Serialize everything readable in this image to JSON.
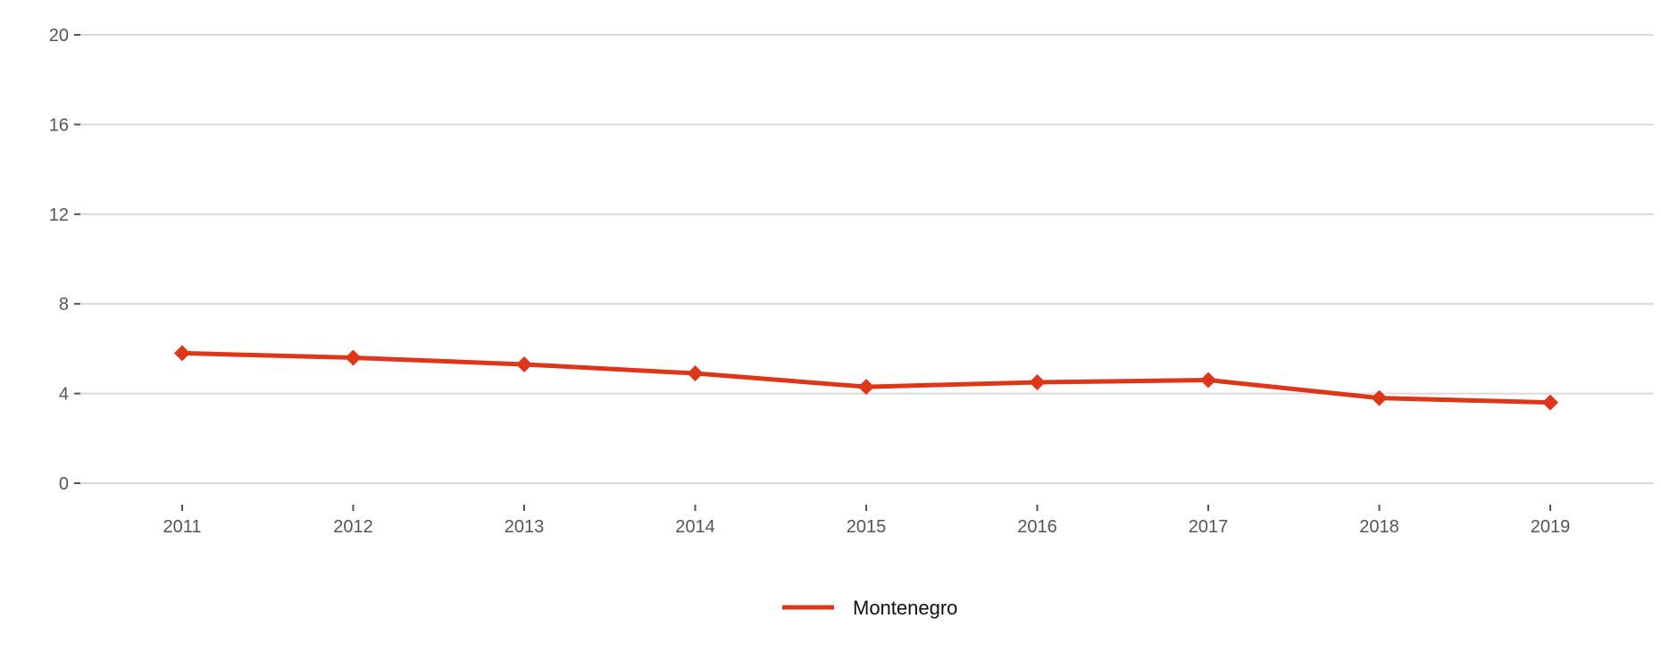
{
  "chart_data": {
    "type": "line",
    "title": "",
    "xlabel": "",
    "ylabel": "",
    "categories": [
      "2011",
      "2012",
      "2013",
      "2014",
      "2015",
      "2016",
      "2017",
      "2018",
      "2019"
    ],
    "ylim": [
      0,
      20
    ],
    "yticks": [
      0,
      4,
      8,
      12,
      16,
      20
    ],
    "y_tick_labels": [
      "0",
      "4",
      "8",
      "12",
      "16",
      "20"
    ],
    "grid": "horizontal",
    "legend_position": "bottom",
    "series": [
      {
        "name": "Montenegro",
        "color": "#dd3618",
        "marker": "diamond",
        "values": [
          5.8,
          5.6,
          5.3,
          4.9,
          4.3,
          4.5,
          4.6,
          3.8,
          3.6
        ]
      }
    ]
  }
}
